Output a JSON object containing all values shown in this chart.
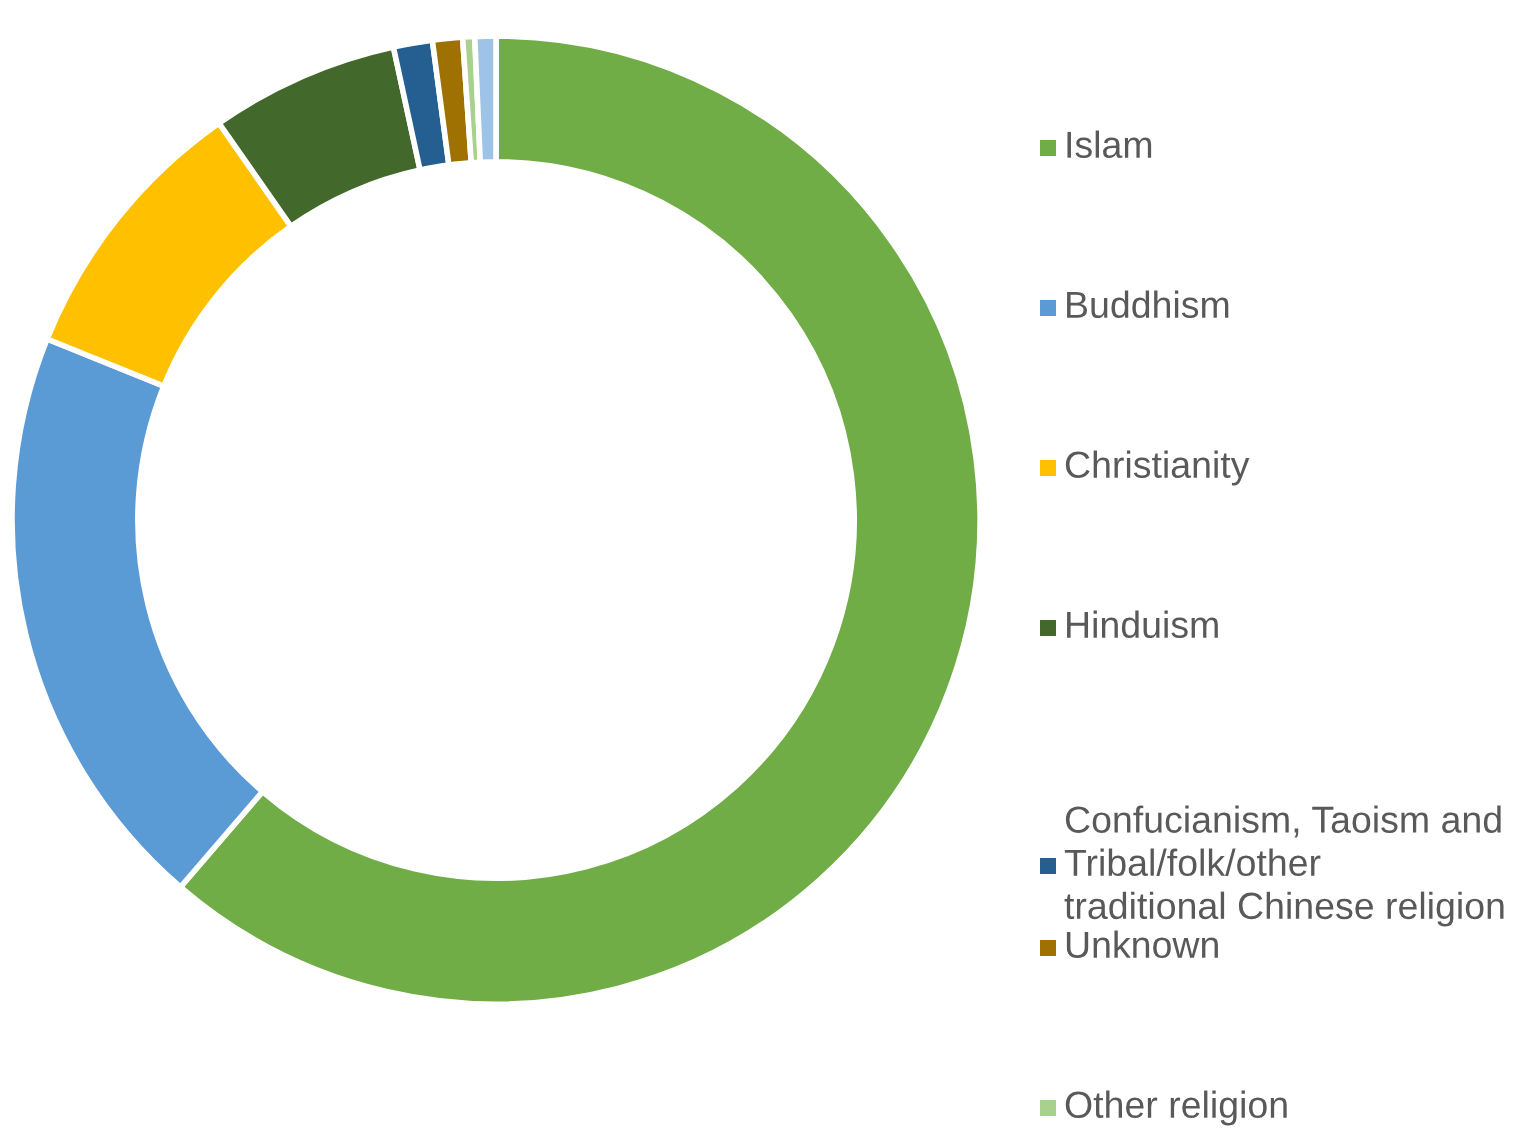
{
  "chart_data": {
    "type": "donut",
    "categories": [
      "Islam",
      "Buddhism",
      "Christianity",
      "Hinduism",
      "Confucianism, Taoism and\nTribal/folk/other\ntraditional Chinese religion",
      "Unknown",
      "Other religion",
      null
    ],
    "values": [
      61.3,
      19.8,
      9.2,
      6.3,
      1.3,
      1.0,
      0.4,
      0.7
    ],
    "colors": [
      "#70ad47",
      "#5b9bd5",
      "#ffc000",
      "#43682b",
      "#255e91",
      "#9e7102",
      "#a9d18e",
      "#9dc3e6"
    ],
    "legend": "right"
  }
}
